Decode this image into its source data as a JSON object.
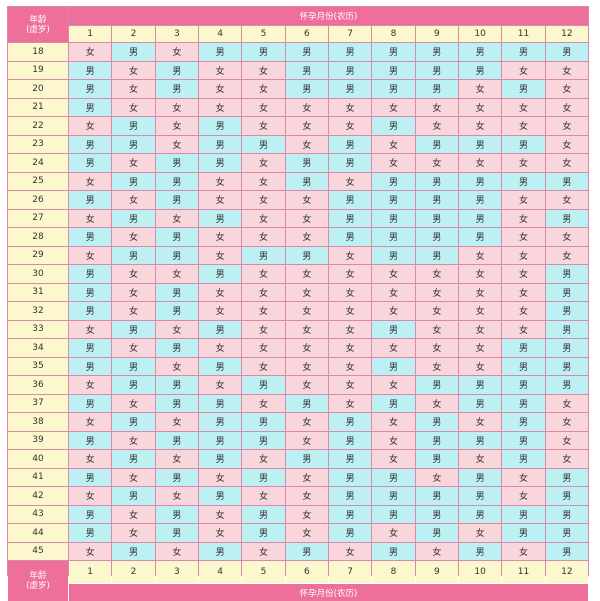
{
  "header_title": "怀孕月份(农历)",
  "footer_title": "怀孕月份(农历)",
  "age_label_line1": "年龄",
  "age_label_line2": "(虚岁)",
  "months": [
    "1",
    "2",
    "3",
    "4",
    "5",
    "6",
    "7",
    "8",
    "9",
    "10",
    "11",
    "12"
  ],
  "ages": [
    "18",
    "19",
    "20",
    "21",
    "22",
    "23",
    "24",
    "25",
    "26",
    "27",
    "28",
    "29",
    "30",
    "31",
    "32",
    "33",
    "34",
    "35",
    "36",
    "37",
    "38",
    "39",
    "40",
    "41",
    "42",
    "43",
    "44",
    "45"
  ],
  "grid": [
    [
      "女",
      "男",
      "女",
      "男",
      "男",
      "男",
      "男",
      "男",
      "男",
      "男",
      "男",
      "男"
    ],
    [
      "男",
      "女",
      "男",
      "女",
      "女",
      "男",
      "男",
      "男",
      "男",
      "男",
      "女",
      "女"
    ],
    [
      "男",
      "女",
      "男",
      "女",
      "女",
      "男",
      "男",
      "男",
      "男",
      "女",
      "男",
      "女"
    ],
    [
      "男",
      "女",
      "女",
      "女",
      "女",
      "女",
      "女",
      "女",
      "女",
      "女",
      "女",
      "女"
    ],
    [
      "女",
      "男",
      "女",
      "男",
      "女",
      "女",
      "女",
      "男",
      "女",
      "女",
      "女",
      "女"
    ],
    [
      "男",
      "男",
      "女",
      "男",
      "男",
      "女",
      "男",
      "女",
      "男",
      "男",
      "男",
      "女"
    ],
    [
      "男",
      "女",
      "男",
      "男",
      "女",
      "男",
      "男",
      "女",
      "女",
      "女",
      "女",
      "女"
    ],
    [
      "女",
      "男",
      "男",
      "女",
      "女",
      "男",
      "女",
      "男",
      "男",
      "男",
      "男",
      "男"
    ],
    [
      "男",
      "女",
      "男",
      "女",
      "女",
      "女",
      "男",
      "男",
      "男",
      "男",
      "女",
      "女"
    ],
    [
      "女",
      "男",
      "女",
      "男",
      "女",
      "女",
      "男",
      "男",
      "男",
      "男",
      "女",
      "男"
    ],
    [
      "男",
      "女",
      "男",
      "女",
      "女",
      "女",
      "男",
      "男",
      "男",
      "男",
      "女",
      "女"
    ],
    [
      "女",
      "男",
      "男",
      "女",
      "男",
      "男",
      "女",
      "男",
      "男",
      "女",
      "女",
      "女"
    ],
    [
      "男",
      "女",
      "女",
      "男",
      "女",
      "女",
      "女",
      "女",
      "女",
      "女",
      "女",
      "男"
    ],
    [
      "男",
      "女",
      "男",
      "女",
      "女",
      "女",
      "女",
      "女",
      "女",
      "女",
      "女",
      "男"
    ],
    [
      "男",
      "女",
      "男",
      "女",
      "女",
      "女",
      "女",
      "女",
      "女",
      "女",
      "女",
      "男"
    ],
    [
      "女",
      "男",
      "女",
      "男",
      "女",
      "女",
      "女",
      "男",
      "女",
      "女",
      "女",
      "男"
    ],
    [
      "男",
      "女",
      "男",
      "女",
      "女",
      "女",
      "女",
      "女",
      "女",
      "女",
      "男",
      "男"
    ],
    [
      "男",
      "男",
      "女",
      "男",
      "女",
      "女",
      "女",
      "男",
      "女",
      "女",
      "男",
      "男"
    ],
    [
      "女",
      "男",
      "男",
      "女",
      "男",
      "女",
      "女",
      "女",
      "男",
      "男",
      "男",
      "男"
    ],
    [
      "男",
      "女",
      "男",
      "男",
      "女",
      "男",
      "女",
      "男",
      "女",
      "男",
      "男",
      "女"
    ],
    [
      "女",
      "男",
      "女",
      "男",
      "男",
      "女",
      "男",
      "女",
      "男",
      "女",
      "男",
      "女"
    ],
    [
      "男",
      "女",
      "男",
      "男",
      "男",
      "女",
      "男",
      "女",
      "男",
      "男",
      "男",
      "女"
    ],
    [
      "女",
      "男",
      "女",
      "男",
      "女",
      "男",
      "男",
      "女",
      "男",
      "女",
      "男",
      "女"
    ],
    [
      "男",
      "女",
      "男",
      "女",
      "男",
      "女",
      "男",
      "男",
      "女",
      "男",
      "女",
      "男"
    ],
    [
      "女",
      "男",
      "女",
      "男",
      "女",
      "女",
      "男",
      "男",
      "男",
      "男",
      "女",
      "男"
    ],
    [
      "男",
      "女",
      "男",
      "女",
      "男",
      "女",
      "男",
      "男",
      "男",
      "男",
      "男",
      "男"
    ],
    [
      "男",
      "女",
      "男",
      "女",
      "男",
      "女",
      "男",
      "女",
      "男",
      "女",
      "男",
      "男"
    ],
    [
      "女",
      "男",
      "女",
      "男",
      "女",
      "男",
      "女",
      "男",
      "女",
      "男",
      "女",
      "男"
    ]
  ],
  "colors": {
    "boy": "#bdf0f2",
    "girl": "#f9d6dc",
    "header": "#ee6f9c",
    "label_bg": "#fdf7ce"
  }
}
